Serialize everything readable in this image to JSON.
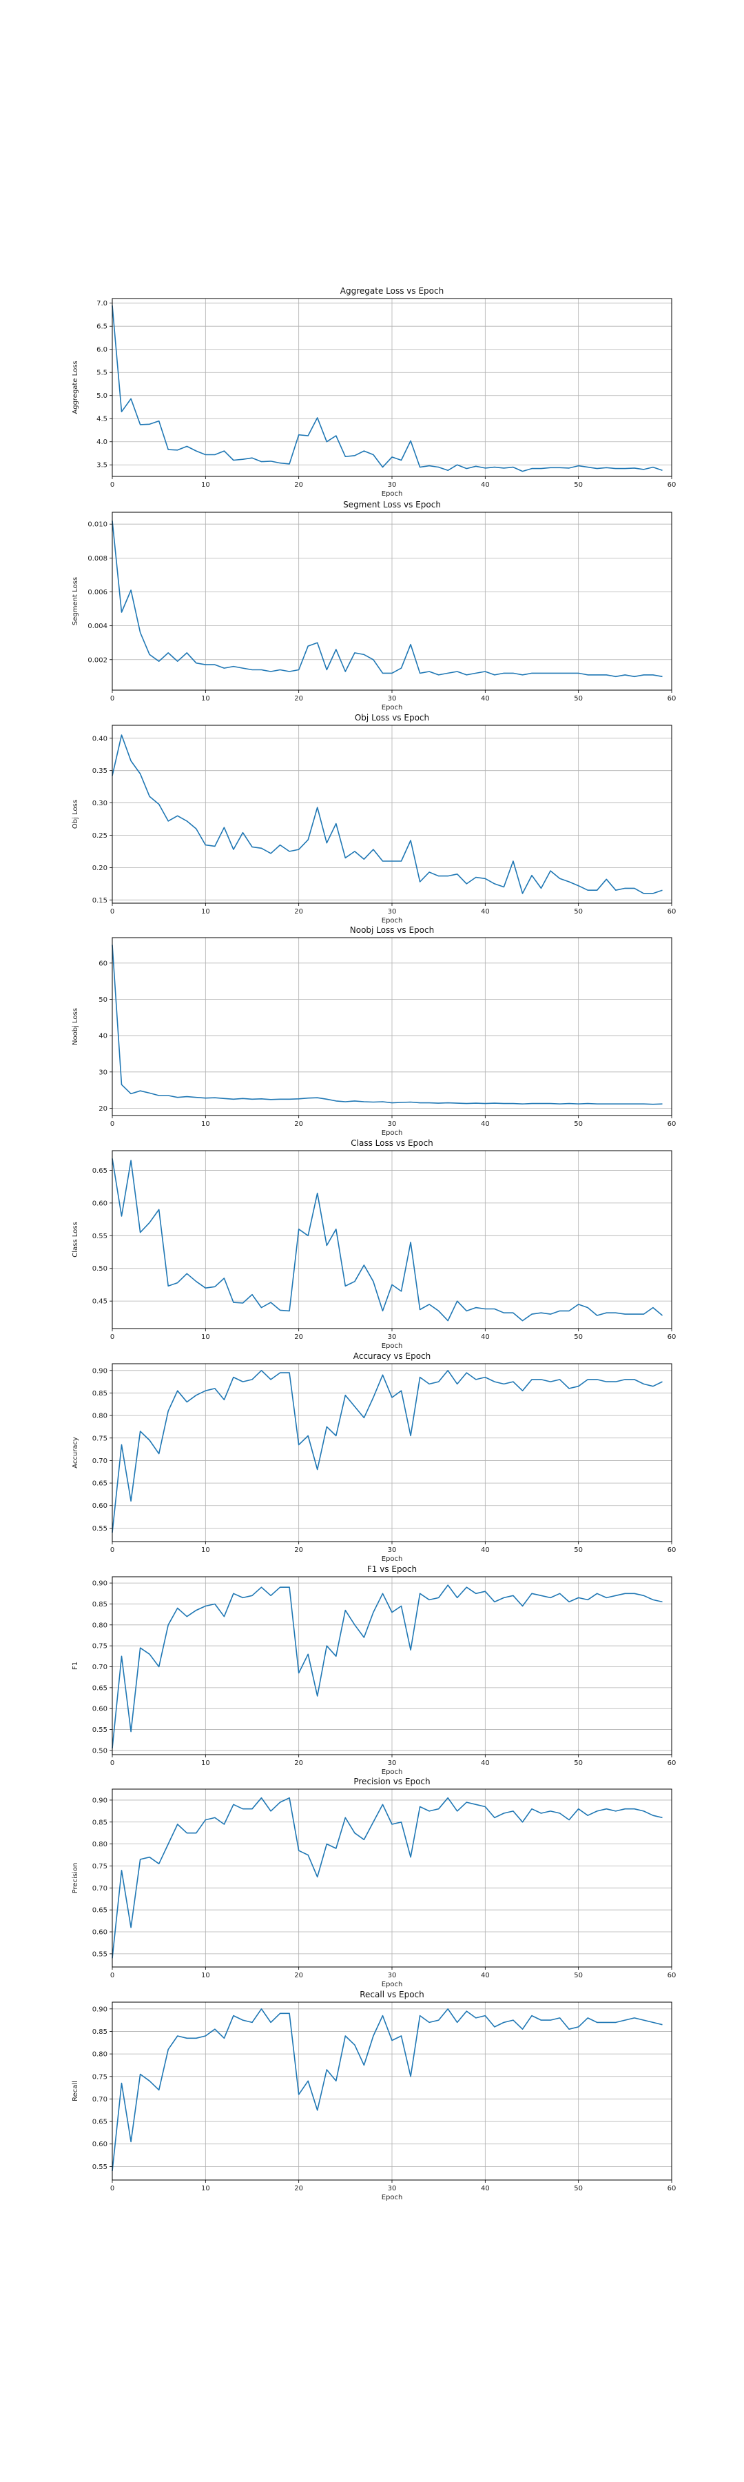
{
  "line_color": "#1f77b4",
  "grid_color": "#b0b0b0",
  "chart_data": [
    {
      "type": "line",
      "title": "Aggregate Loss vs Epoch",
      "xlabel": "Epoch",
      "ylabel": "Aggregate Loss",
      "xlim": [
        0,
        60
      ],
      "ylim": [
        3.25,
        7.1
      ],
      "xticks": [
        0,
        10,
        20,
        30,
        40,
        50,
        60
      ],
      "yticks": [
        3.5,
        4.0,
        4.5,
        5.0,
        5.5,
        6.0,
        6.5,
        7.0
      ],
      "ytick_labels": [
        "3.5",
        "4.0",
        "4.5",
        "5.0",
        "5.5",
        "6.0",
        "6.5",
        "7.0"
      ],
      "grid": true,
      "series": [
        {
          "values": [
            6.95,
            4.65,
            4.93,
            4.37,
            4.38,
            4.45,
            3.83,
            3.82,
            3.9,
            3.8,
            3.72,
            3.72,
            3.8,
            3.6,
            3.62,
            3.65,
            3.57,
            3.58,
            3.54,
            3.52,
            4.15,
            4.13,
            4.52,
            4.0,
            4.13,
            3.68,
            3.7,
            3.8,
            3.72,
            3.45,
            3.67,
            3.6,
            4.02,
            3.45,
            3.48,
            3.45,
            3.38,
            3.5,
            3.42,
            3.47,
            3.43,
            3.45,
            3.43,
            3.45,
            3.36,
            3.42,
            3.42,
            3.44,
            3.44,
            3.43,
            3.48,
            3.45,
            3.42,
            3.44,
            3.42,
            3.42,
            3.43,
            3.4,
            3.45,
            3.38
          ]
        }
      ]
    },
    {
      "type": "line",
      "title": "Segment Loss vs Epoch",
      "xlabel": "Epoch",
      "ylabel": "Segment Loss",
      "xlim": [
        0,
        60
      ],
      "ylim": [
        0.0002,
        0.0107
      ],
      "xticks": [
        0,
        10,
        20,
        30,
        40,
        50,
        60
      ],
      "yticks": [
        0.002,
        0.004,
        0.006,
        0.008,
        0.01
      ],
      "ytick_labels": [
        "0.002",
        "0.004",
        "0.006",
        "0.008",
        "0.010"
      ],
      "grid": true,
      "series": [
        {
          "values": [
            0.0102,
            0.0048,
            0.0061,
            0.0036,
            0.0023,
            0.0019,
            0.0024,
            0.0019,
            0.0024,
            0.0018,
            0.0017,
            0.0017,
            0.0015,
            0.0016,
            0.0015,
            0.0014,
            0.0014,
            0.0013,
            0.0014,
            0.0013,
            0.0014,
            0.0028,
            0.003,
            0.0014,
            0.0026,
            0.0013,
            0.0024,
            0.0023,
            0.002,
            0.0012,
            0.0012,
            0.0015,
            0.0029,
            0.0012,
            0.0013,
            0.0011,
            0.0012,
            0.0013,
            0.0011,
            0.0012,
            0.0013,
            0.0011,
            0.0012,
            0.0012,
            0.0011,
            0.0012,
            0.0012,
            0.0012,
            0.0012,
            0.0012,
            0.0012,
            0.0011,
            0.0011,
            0.0011,
            0.001,
            0.0011,
            0.001,
            0.0011,
            0.0011,
            0.001
          ]
        }
      ]
    },
    {
      "type": "line",
      "title": "Obj Loss vs Epoch",
      "xlabel": "Epoch",
      "ylabel": "Obj Loss",
      "xlim": [
        0,
        60
      ],
      "ylim": [
        0.145,
        0.42
      ],
      "xticks": [
        0,
        10,
        20,
        30,
        40,
        50,
        60
      ],
      "yticks": [
        0.15,
        0.2,
        0.25,
        0.3,
        0.35,
        0.4
      ],
      "ytick_labels": [
        "0.15",
        "0.20",
        "0.25",
        "0.30",
        "0.35",
        "0.40"
      ],
      "grid": true,
      "series": [
        {
          "values": [
            0.342,
            0.405,
            0.365,
            0.345,
            0.31,
            0.298,
            0.272,
            0.28,
            0.272,
            0.26,
            0.235,
            0.233,
            0.262,
            0.228,
            0.254,
            0.232,
            0.23,
            0.222,
            0.235,
            0.225,
            0.228,
            0.243,
            0.293,
            0.238,
            0.268,
            0.215,
            0.225,
            0.213,
            0.228,
            0.21,
            0.21,
            0.21,
            0.242,
            0.178,
            0.193,
            0.187,
            0.187,
            0.19,
            0.175,
            0.185,
            0.183,
            0.175,
            0.17,
            0.21,
            0.16,
            0.188,
            0.168,
            0.195,
            0.183,
            0.178,
            0.172,
            0.165,
            0.165,
            0.182,
            0.165,
            0.168,
            0.168,
            0.16,
            0.16,
            0.165
          ]
        }
      ]
    },
    {
      "type": "line",
      "title": "Noobj Loss vs Epoch",
      "xlabel": "Epoch",
      "ylabel": "Noobj Loss",
      "xlim": [
        0,
        60
      ],
      "ylim": [
        18,
        67
      ],
      "xticks": [
        0,
        10,
        20,
        30,
        40,
        50,
        60
      ],
      "yticks": [
        20,
        30,
        40,
        50,
        60
      ],
      "ytick_labels": [
        "20",
        "30",
        "40",
        "50",
        "60"
      ],
      "grid": true,
      "series": [
        {
          "values": [
            65,
            26.5,
            24,
            24.8,
            24.2,
            23.5,
            23.5,
            23,
            23.2,
            23,
            22.8,
            22.9,
            22.7,
            22.5,
            22.7,
            22.5,
            22.6,
            22.4,
            22.5,
            22.5,
            22.6,
            22.8,
            22.9,
            22.5,
            22,
            21.8,
            22,
            21.8,
            21.7,
            21.8,
            21.5,
            21.6,
            21.7,
            21.5,
            21.5,
            21.4,
            21.5,
            21.4,
            21.3,
            21.4,
            21.3,
            21.4,
            21.3,
            21.3,
            21.2,
            21.3,
            21.3,
            21.3,
            21.2,
            21.3,
            21.2,
            21.3,
            21.2,
            21.2,
            21.2,
            21.2,
            21.2,
            21.2,
            21.1,
            21.2
          ]
        }
      ]
    },
    {
      "type": "line",
      "title": "Class Loss vs Epoch",
      "xlabel": "Epoch",
      "ylabel": "Class Loss",
      "xlim": [
        0,
        60
      ],
      "ylim": [
        0.408,
        0.68
      ],
      "xticks": [
        0,
        10,
        20,
        30,
        40,
        50,
        60
      ],
      "yticks": [
        0.45,
        0.5,
        0.55,
        0.6,
        0.65
      ],
      "ytick_labels": [
        "0.45",
        "0.50",
        "0.55",
        "0.60",
        "0.65"
      ],
      "grid": true,
      "series": [
        {
          "values": [
            0.668,
            0.58,
            0.665,
            0.555,
            0.57,
            0.59,
            0.473,
            0.478,
            0.492,
            0.48,
            0.47,
            0.472,
            0.485,
            0.448,
            0.447,
            0.46,
            0.44,
            0.448,
            0.436,
            0.435,
            0.56,
            0.55,
            0.615,
            0.535,
            0.56,
            0.473,
            0.48,
            0.505,
            0.48,
            0.435,
            0.475,
            0.465,
            0.54,
            0.437,
            0.445,
            0.435,
            0.42,
            0.45,
            0.435,
            0.44,
            0.438,
            0.438,
            0.432,
            0.432,
            0.42,
            0.43,
            0.432,
            0.43,
            0.435,
            0.435,
            0.445,
            0.44,
            0.428,
            0.432,
            0.432,
            0.43,
            0.43,
            0.43,
            0.44,
            0.428
          ]
        }
      ]
    },
    {
      "type": "line",
      "title": "Accuracy vs Epoch",
      "xlabel": "Epoch",
      "ylabel": "Accuracy",
      "xlim": [
        0,
        60
      ],
      "ylim": [
        0.52,
        0.915
      ],
      "xticks": [
        0,
        10,
        20,
        30,
        40,
        50,
        60
      ],
      "yticks": [
        0.55,
        0.6,
        0.65,
        0.7,
        0.75,
        0.8,
        0.85,
        0.9
      ],
      "ytick_labels": [
        "0.55",
        "0.60",
        "0.65",
        "0.70",
        "0.75",
        "0.80",
        "0.85",
        "0.90"
      ],
      "grid": true,
      "series": [
        {
          "values": [
            0.54,
            0.735,
            0.61,
            0.765,
            0.745,
            0.715,
            0.81,
            0.855,
            0.83,
            0.845,
            0.855,
            0.86,
            0.835,
            0.885,
            0.875,
            0.88,
            0.9,
            0.88,
            0.895,
            0.895,
            0.735,
            0.755,
            0.68,
            0.775,
            0.755,
            0.845,
            0.82,
            0.795,
            0.84,
            0.89,
            0.84,
            0.855,
            0.755,
            0.885,
            0.87,
            0.875,
            0.9,
            0.87,
            0.895,
            0.88,
            0.885,
            0.875,
            0.87,
            0.875,
            0.855,
            0.88,
            0.88,
            0.875,
            0.88,
            0.86,
            0.865,
            0.88,
            0.88,
            0.875,
            0.875,
            0.88,
            0.88,
            0.87,
            0.865,
            0.875
          ]
        }
      ]
    },
    {
      "type": "line",
      "title": "F1 vs Epoch",
      "xlabel": "Epoch",
      "ylabel": "F1",
      "xlim": [
        0,
        60
      ],
      "ylim": [
        0.49,
        0.915
      ],
      "xticks": [
        0,
        10,
        20,
        30,
        40,
        50,
        60
      ],
      "yticks": [
        0.5,
        0.55,
        0.6,
        0.65,
        0.7,
        0.75,
        0.8,
        0.85,
        0.9
      ],
      "ytick_labels": [
        "0.50",
        "0.55",
        "0.60",
        "0.65",
        "0.70",
        "0.75",
        "0.80",
        "0.85",
        "0.90"
      ],
      "grid": true,
      "series": [
        {
          "values": [
            0.505,
            0.725,
            0.545,
            0.745,
            0.73,
            0.7,
            0.8,
            0.84,
            0.82,
            0.835,
            0.845,
            0.85,
            0.82,
            0.875,
            0.865,
            0.87,
            0.89,
            0.87,
            0.89,
            0.89,
            0.685,
            0.73,
            0.63,
            0.75,
            0.725,
            0.835,
            0.8,
            0.77,
            0.83,
            0.875,
            0.83,
            0.845,
            0.74,
            0.875,
            0.86,
            0.865,
            0.895,
            0.865,
            0.89,
            0.875,
            0.88,
            0.855,
            0.865,
            0.87,
            0.845,
            0.875,
            0.87,
            0.865,
            0.875,
            0.855,
            0.865,
            0.86,
            0.875,
            0.865,
            0.87,
            0.875,
            0.875,
            0.87,
            0.86,
            0.855
          ]
        }
      ]
    },
    {
      "type": "line",
      "title": "Precision vs Epoch",
      "xlabel": "Epoch",
      "ylabel": "Precision",
      "xlim": [
        0,
        60
      ],
      "ylim": [
        0.52,
        0.925
      ],
      "xticks": [
        0,
        10,
        20,
        30,
        40,
        50,
        60
      ],
      "yticks": [
        0.55,
        0.6,
        0.65,
        0.7,
        0.75,
        0.8,
        0.85,
        0.9
      ],
      "ytick_labels": [
        "0.55",
        "0.60",
        "0.65",
        "0.70",
        "0.75",
        "0.80",
        "0.85",
        "0.90"
      ],
      "grid": true,
      "series": [
        {
          "values": [
            0.54,
            0.74,
            0.61,
            0.765,
            0.77,
            0.755,
            0.8,
            0.845,
            0.825,
            0.825,
            0.855,
            0.86,
            0.845,
            0.89,
            0.88,
            0.88,
            0.905,
            0.875,
            0.895,
            0.905,
            0.785,
            0.775,
            0.725,
            0.8,
            0.79,
            0.86,
            0.825,
            0.81,
            0.85,
            0.89,
            0.845,
            0.85,
            0.77,
            0.885,
            0.875,
            0.88,
            0.905,
            0.875,
            0.895,
            0.89,
            0.885,
            0.86,
            0.87,
            0.875,
            0.85,
            0.88,
            0.87,
            0.875,
            0.87,
            0.855,
            0.88,
            0.865,
            0.875,
            0.88,
            0.875,
            0.88,
            0.88,
            0.875,
            0.865,
            0.86
          ]
        }
      ]
    },
    {
      "type": "line",
      "title": "Recall vs Epoch",
      "xlabel": "Epoch",
      "ylabel": "Recall",
      "xlim": [
        0,
        60
      ],
      "ylim": [
        0.52,
        0.915
      ],
      "xticks": [
        0,
        10,
        20,
        30,
        40,
        50,
        60
      ],
      "yticks": [
        0.55,
        0.6,
        0.65,
        0.7,
        0.75,
        0.8,
        0.85,
        0.9
      ],
      "ytick_labels": [
        "0.55",
        "0.60",
        "0.65",
        "0.70",
        "0.75",
        "0.80",
        "0.85",
        "0.90"
      ],
      "grid": true,
      "series": [
        {
          "values": [
            0.54,
            0.735,
            0.605,
            0.755,
            0.74,
            0.72,
            0.81,
            0.84,
            0.835,
            0.835,
            0.84,
            0.855,
            0.835,
            0.885,
            0.875,
            0.87,
            0.9,
            0.87,
            0.89,
            0.89,
            0.71,
            0.74,
            0.675,
            0.765,
            0.74,
            0.84,
            0.82,
            0.775,
            0.84,
            0.885,
            0.83,
            0.84,
            0.75,
            0.885,
            0.87,
            0.875,
            0.9,
            0.87,
            0.895,
            0.88,
            0.885,
            0.86,
            0.87,
            0.875,
            0.855,
            0.885,
            0.875,
            0.875,
            0.88,
            0.855,
            0.86,
            0.88,
            0.87,
            0.87,
            0.87,
            0.875,
            0.88,
            0.875,
            0.87,
            0.865
          ]
        }
      ]
    }
  ]
}
